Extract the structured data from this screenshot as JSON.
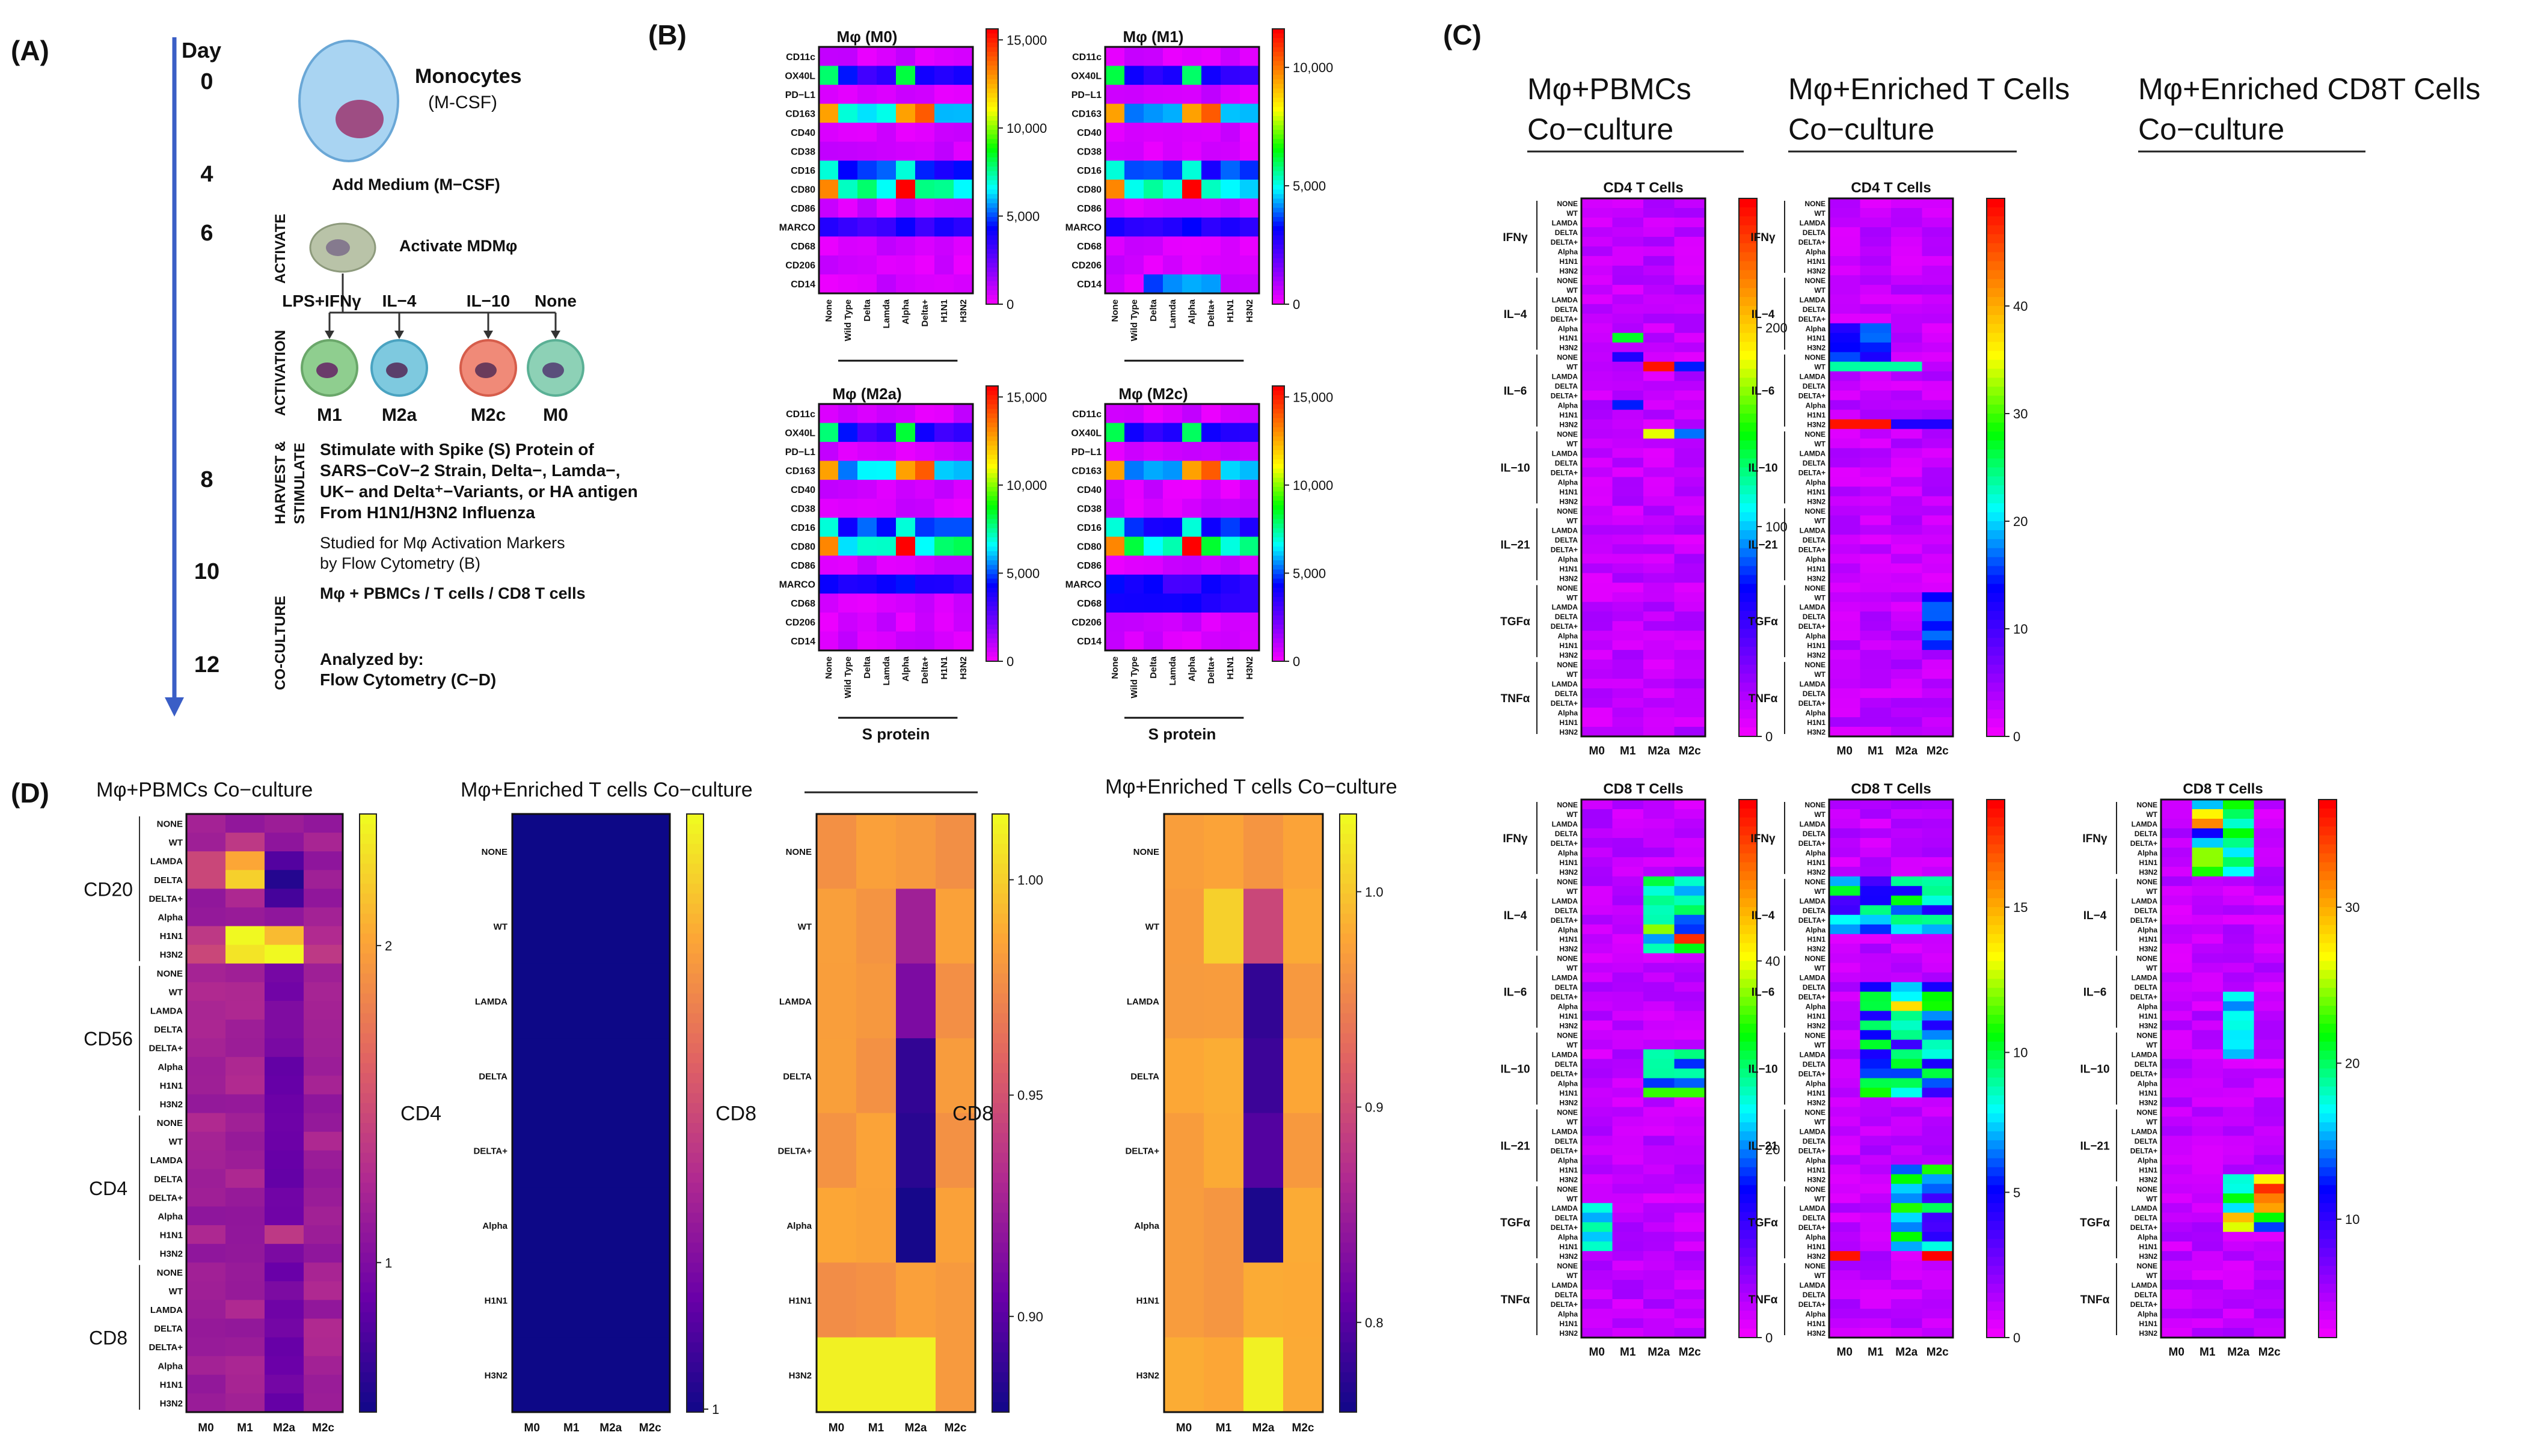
{
  "panels": {
    "A": "(A)",
    "B": "(B)",
    "C": "(C)",
    "D": "(D)"
  },
  "timeline": {
    "day_header": "Day",
    "days": [
      "0",
      "4",
      "6",
      "8",
      "10",
      "12"
    ],
    "monocytes": "Monocytes",
    "mcsf": "(M-CSF)",
    "add_medium": "Add Medium (M−CSF)",
    "activate_mdm": "Activate MDMφ",
    "activate_side": "ACTIVATE",
    "activation_side": "ACTIVATION",
    "harvest_side1": "HARVEST &",
    "harvest_side2": "STIMULATE",
    "coculture_side": "CO-CULTURE",
    "treatments": [
      "LPS+IFNγ",
      "IL−4",
      "IL−10",
      "None"
    ],
    "states": [
      "M1",
      "M2a",
      "M2c",
      "M0"
    ],
    "stim_lines": [
      "Stimulate with Spike (S) Protein of",
      "SARS−CoV−2 Strain, Delta−, Lamda−,",
      "UK− and Delta⁺−Variants, or HA antigen",
      "From H1N1/H3N2 Influenza"
    ],
    "studied_lines": [
      "Studied for Mφ Activation Markers",
      "by Flow Cytometry (B)"
    ],
    "coculture_text": "Mφ + PBMCs / T cells / CD8 T cells",
    "analyzed_lines": [
      "Analyzed by:",
      "Flow Cytometry (C−D)"
    ]
  },
  "panel_b": {
    "markers": [
      "CD11c",
      "OX40L",
      "PD−L1",
      "CD163",
      "CD40",
      "CD38",
      "CD16",
      "CD80",
      "CD86",
      "MARCO",
      "CD68",
      "CD206",
      "CD14"
    ],
    "antigens": [
      "None",
      "Wild Type",
      "Delta",
      "Lamda",
      "Alpha",
      "Delta+",
      "H1N1",
      "H3N2"
    ],
    "s_protein": "S protein",
    "maps": [
      {
        "title": "Mφ (M0)",
        "ticks": [
          "15,000",
          "10,000",
          "5,000",
          "0"
        ]
      },
      {
        "title": "Mφ (M1)",
        "ticks": [
          "10,000",
          "5,000",
          "0"
        ]
      },
      {
        "title": "Mφ (M2a)",
        "ticks": [
          "15,000",
          "10,000",
          "5,000",
          "0"
        ]
      },
      {
        "title": "Mφ (M2c)",
        "ticks": [
          "15,000",
          "10,000",
          "5,000",
          "0"
        ]
      }
    ]
  },
  "panel_c": {
    "headers": [
      [
        "Mφ+PBMCs",
        "Co−culture"
      ],
      [
        "Mφ+Enriched T Cells",
        "Co−culture"
      ],
      [
        "Mφ+Enriched CD8T Cells",
        "Co−culture"
      ]
    ],
    "cytokines": [
      "IFNγ",
      "IL−4",
      "IL−6",
      "IL−10",
      "IL−21",
      "TGFα",
      "TNFα"
    ],
    "antigens": [
      "NONE",
      "WT",
      "LAMDA",
      "DELTA",
      "DELTA+",
      "Alpha",
      "H1N1",
      "H3N2"
    ],
    "xlabels": [
      "M0",
      "M1",
      "M2a",
      "M2c"
    ],
    "maps": [
      {
        "title": "CD4 T Cells",
        "ticks": [
          "200",
          "100",
          "0"
        ]
      },
      {
        "title": "CD4 T Cells",
        "ticks": [
          "40",
          "30",
          "20",
          "10",
          "0"
        ]
      },
      {
        "title": "CD8 T Cells",
        "ticks": [
          "40",
          "20",
          "0"
        ]
      },
      {
        "title": "CD8 T Cells",
        "ticks": [
          "15",
          "10",
          "5",
          "0"
        ]
      },
      {
        "title": "CD8 T Cells",
        "ticks": [
          "30",
          "20",
          "10"
        ]
      }
    ]
  },
  "panel_d": {
    "titles": [
      "Mφ+PBMCs Co−culture",
      "Mφ+Enriched T cells Co−culture",
      "Mφ+Enriched T cells Co−culture"
    ],
    "groups": [
      "CD20",
      "CD56",
      "CD4",
      "CD8"
    ],
    "antigens": [
      "NONE",
      "WT",
      "LAMDA",
      "DELTA",
      "DELTA+",
      "Alpha",
      "H1N1",
      "H3N2"
    ],
    "xlabels": [
      "M0",
      "M1",
      "M2a",
      "M2c"
    ],
    "maps": [
      {
        "label": "CD4",
        "ticks": [
          "2",
          "1"
        ]
      },
      {
        "label": "CD8",
        "ticks": [
          "1"
        ]
      },
      {
        "label": "CD8",
        "ticks": [
          "1.00",
          "0.95",
          "0.90"
        ]
      },
      {
        "label": "",
        "ticks": [
          "1.0",
          "0.9",
          "0.8"
        ]
      }
    ]
  },
  "colors": {
    "rainbow": [
      "#ff00ff",
      "#7a00ff",
      "#0000ff",
      "#00ffff",
      "#00ff00",
      "#ffff00",
      "#ff8000",
      "#ff0000"
    ],
    "plasma": [
      "#0d0887",
      "#6a00a8",
      "#b12a90",
      "#e16462",
      "#fca636",
      "#f0f921"
    ]
  }
}
